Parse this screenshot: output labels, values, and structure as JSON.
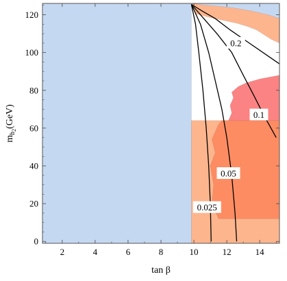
{
  "chart_data": {
    "type": "area",
    "xlabel": "tan β",
    "ylabel_main": "m",
    "ylabel_sub": "h",
    "ylabel_subsub": "2",
    "ylabel_unit": "(GeV)",
    "xlim": [
      0.8,
      15.2
    ],
    "ylim": [
      -1,
      126
    ],
    "x_ticks": [
      2,
      4,
      6,
      8,
      10,
      12,
      14
    ],
    "y_ticks": [
      0,
      20,
      40,
      60,
      80,
      100,
      120
    ],
    "colors": {
      "blue_region": "#c5d8f1",
      "light_orange": "#fdb58e",
      "medium_orange": "#fd8c62",
      "pink_red": "#fb8383",
      "line": "#000000",
      "frame": "#555555"
    },
    "regions": [
      {
        "id": "blue-region",
        "color": "blue_region",
        "points": [
          [
            0.8,
            -1
          ],
          [
            9.85,
            -1
          ],
          [
            9.85,
            126
          ],
          [
            0.8,
            126
          ]
        ]
      },
      {
        "id": "light-orange-low",
        "color": "light_orange",
        "points": [
          [
            9.85,
            -1
          ],
          [
            15.2,
            -1
          ],
          [
            15.2,
            64
          ],
          [
            9.85,
            64
          ]
        ]
      },
      {
        "id": "medium-orange-low",
        "color": "medium_orange",
        "points": [
          [
            11.5,
            12
          ],
          [
            11.1,
            20
          ],
          [
            11.2,
            30
          ],
          [
            11.0,
            40
          ],
          [
            11.3,
            47
          ],
          [
            11.1,
            54
          ],
          [
            11.5,
            62
          ],
          [
            11.7,
            64
          ],
          [
            15.2,
            64
          ],
          [
            15.2,
            12
          ]
        ]
      },
      {
        "id": "pink-mid",
        "color": "pink_red",
        "points": [
          [
            12.1,
            64
          ],
          [
            12.3,
            68
          ],
          [
            12.2,
            72
          ],
          [
            12.4,
            76
          ],
          [
            12.3,
            79
          ],
          [
            12.7,
            82
          ],
          [
            13.2,
            84
          ],
          [
            14.0,
            86
          ],
          [
            15.2,
            88
          ],
          [
            15.2,
            64
          ]
        ]
      },
      {
        "id": "top-orange",
        "color": "light_orange",
        "points": [
          [
            9.85,
            126
          ],
          [
            15.2,
            126
          ],
          [
            15.2,
            105
          ],
          [
            14.7,
            107
          ],
          [
            13.8,
            112
          ],
          [
            13.2,
            114
          ],
          [
            12.6,
            115.5
          ],
          [
            11.8,
            117
          ],
          [
            11.0,
            118.5
          ],
          [
            10.1,
            120.5
          ]
        ]
      },
      {
        "id": "top-blue-sliver",
        "color": "blue_region",
        "points": [
          [
            9.85,
            126
          ],
          [
            15.2,
            126
          ],
          [
            15.2,
            118
          ],
          [
            14.5,
            120
          ],
          [
            13.5,
            122
          ],
          [
            12.5,
            123.5
          ],
          [
            11.5,
            124.5
          ],
          [
            10.5,
            125.3
          ]
        ]
      }
    ],
    "series": [
      {
        "name": "0.2",
        "label_at": [
          12.55,
          105
        ],
        "points": [
          [
            9.85,
            125.5
          ],
          [
            10.5,
            122
          ],
          [
            11.3,
            118
          ],
          [
            12.2,
            112
          ],
          [
            13.2,
            106
          ],
          [
            14.2,
            100
          ],
          [
            15.2,
            94
          ]
        ]
      },
      {
        "name": "0.1",
        "label_at": [
          13.95,
          67
        ],
        "points": [
          [
            9.85,
            125.5
          ],
          [
            10.6,
            118
          ],
          [
            11.4,
            110
          ],
          [
            12.3,
            100
          ],
          [
            13.0,
            88
          ],
          [
            13.6,
            78
          ],
          [
            14.3,
            66
          ],
          [
            15.0,
            55
          ]
        ]
      },
      {
        "name": "0.05",
        "label_at": [
          12.1,
          36
        ],
        "points": [
          [
            9.85,
            125.5
          ],
          [
            10.4,
            115
          ],
          [
            10.9,
            100
          ],
          [
            11.3,
            85
          ],
          [
            11.7,
            70
          ],
          [
            12.0,
            55
          ],
          [
            12.3,
            35
          ],
          [
            12.5,
            15
          ],
          [
            12.6,
            0
          ]
        ]
      },
      {
        "name": "0.025",
        "label_at": [
          10.8,
          18
        ],
        "points": [
          [
            9.85,
            125.5
          ],
          [
            10.1,
            115
          ],
          [
            10.3,
            100
          ],
          [
            10.55,
            80
          ],
          [
            10.75,
            60
          ],
          [
            10.9,
            40
          ],
          [
            11.0,
            20
          ],
          [
            11.05,
            0
          ]
        ]
      }
    ]
  }
}
